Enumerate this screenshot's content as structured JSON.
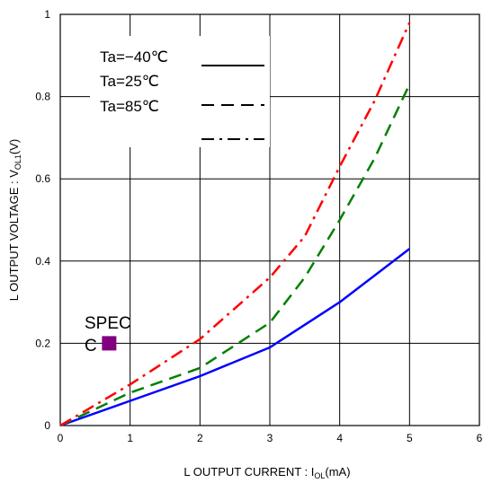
{
  "chart_data": {
    "type": "line",
    "xlabel_main": "L OUTPUT CURRENT : I",
    "xlabel_sub": "OL",
    "xlabel_tail": "(mA)",
    "ylabel_main": "L OUTPUT VOLTAGE : V",
    "ylabel_sub": "OL1",
    "ylabel_tail": "(V)",
    "xlim": [
      0,
      6
    ],
    "ylim": [
      0,
      1
    ],
    "x_ticks": [
      "0",
      "1",
      "2",
      "3",
      "4",
      "5",
      "6"
    ],
    "y_ticks": [
      "0",
      "0.2",
      "0.4",
      "0.6",
      "0.8",
      "1"
    ],
    "grid": true,
    "legend": [
      {
        "label": "Ta=−40℃",
        "style": "solid"
      },
      {
        "label": "Ta=25℃",
        "style": "dashed"
      },
      {
        "label": "Ta=85℃",
        "style": "dashdot"
      }
    ],
    "series": [
      {
        "color": "#0000ff",
        "style": "solid",
        "x": [
          0,
          1,
          2,
          3,
          4,
          5
        ],
        "y": [
          0,
          0.06,
          0.12,
          0.19,
          0.3,
          0.43
        ]
      },
      {
        "color": "#008000",
        "style": "dashed",
        "x": [
          0,
          1,
          2,
          3,
          3.5,
          4,
          4.5,
          5
        ],
        "y": [
          0,
          0.08,
          0.14,
          0.25,
          0.36,
          0.5,
          0.65,
          0.83
        ]
      },
      {
        "color": "#ff0000",
        "style": "dashdot",
        "x": [
          0,
          1,
          2,
          3,
          3.5,
          4,
          4.5,
          5
        ],
        "y": [
          0,
          0.1,
          0.21,
          0.36,
          0.46,
          0.63,
          0.79,
          0.98
        ]
      }
    ],
    "annotation": {
      "text": "SPEC",
      "text_tail": "C",
      "x": 0.7,
      "y": 0.2,
      "marker_color": "#800080"
    }
  }
}
